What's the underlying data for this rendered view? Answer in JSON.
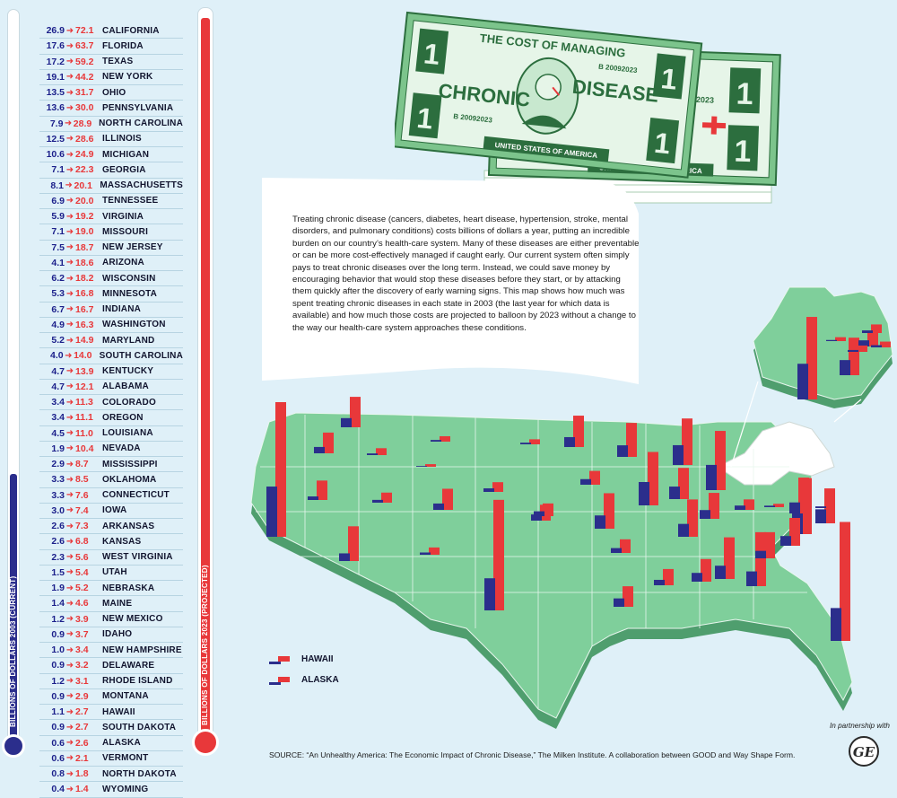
{
  "title": {
    "line1": "THE COST OF MANAGING",
    "line2a": "CHRONIC",
    "line2b": "DISEASE",
    "bill_serial": "B 20092023",
    "bill_country": "UNITED STATES OF AMERICA",
    "bill_denomination": "1"
  },
  "intro": "Treating chronic disease (cancers, diabetes, heart disease, hypertension, stroke, mental disorders, and pulmonary conditions) costs billions of dollars a year, putting an incredible burden on our country’s health-care system. Many of these diseases are either preventable or can be more cost-effectively managed if caught early. Our current system often simply pays to treat chronic diseases over the long term. Instead, we could save money by encouraging behavior that would stop these diseases before they start, or by attacking them quickly after the discovery of early warning signs. This map shows how much was spent treating chronic diseases in each state in 2003 (the last year for which data is available) and how much those costs are projected to balloon by 2023 without a change to the way our health-care system approaches these conditions.",
  "thermometers": {
    "current_label": "BILLIONS OF DOLLARS 2003 (CURRENT)",
    "projected_label": "BILLIONS OF DOLLARS 2023 (PROJECTED)",
    "current_color": "#2b2e8c",
    "projected_color": "#e8383a",
    "current_fill_fraction": 0.37,
    "projected_fill_fraction": 1.0
  },
  "legend": {
    "hawaii": "HAWAII",
    "alaska": "ALASKA"
  },
  "source": "SOURCE: “An Unhealthy America: The Economic Impact of Chronic Disease,” The Milken Institute. A collaboration between GOOD and Way Shape Form.",
  "partner": "In partnership with",
  "partner_logo": "GE",
  "colors": {
    "background": "#dff0f8",
    "map_land": "#7fcf9b",
    "map_edge": "#4f9e6e",
    "bar_2003": "#2b2e8c",
    "bar_2023": "#e8383a",
    "bill_green": "#7cc48c"
  },
  "chart_data": {
    "type": "bar",
    "units": "billions of dollars",
    "series_names": [
      "2003",
      "2023"
    ],
    "states": [
      {
        "state": "CALIFORNIA",
        "v2003": "26.9",
        "v2023": "72.1"
      },
      {
        "state": "FLORIDA",
        "v2003": "17.6",
        "v2023": "63.7"
      },
      {
        "state": "TEXAS",
        "v2003": "17.2",
        "v2023": "59.2"
      },
      {
        "state": "NEW YORK",
        "v2003": "19.1",
        "v2023": "44.2"
      },
      {
        "state": "OHIO",
        "v2003": "13.5",
        "v2023": "31.7"
      },
      {
        "state": "PENNSYLVANIA",
        "v2003": "13.6",
        "v2023": "30.0"
      },
      {
        "state": "NORTH CAROLINA",
        "v2003": "7.9",
        "v2023": "28.9"
      },
      {
        "state": "ILLINOIS",
        "v2003": "12.5",
        "v2023": "28.6"
      },
      {
        "state": "MICHIGAN",
        "v2003": "10.6",
        "v2023": "24.9"
      },
      {
        "state": "GEORGIA",
        "v2003": "7.1",
        "v2023": "22.3"
      },
      {
        "state": "MASSACHUSETTS",
        "v2003": "8.1",
        "v2023": "20.1"
      },
      {
        "state": "TENNESSEE",
        "v2003": "6.9",
        "v2023": "20.0"
      },
      {
        "state": "VIRGINIA",
        "v2003": "5.9",
        "v2023": "19.2"
      },
      {
        "state": "MISSOURI",
        "v2003": "7.1",
        "v2023": "19.0"
      },
      {
        "state": "NEW JERSEY",
        "v2003": "7.5",
        "v2023": "18.7"
      },
      {
        "state": "ARIZONA",
        "v2003": "4.1",
        "v2023": "18.6"
      },
      {
        "state": "WISCONSIN",
        "v2003": "6.2",
        "v2023": "18.2"
      },
      {
        "state": "MINNESOTA",
        "v2003": "5.3",
        "v2023": "16.8"
      },
      {
        "state": "INDIANA",
        "v2003": "6.7",
        "v2023": "16.7"
      },
      {
        "state": "WASHINGTON",
        "v2003": "4.9",
        "v2023": "16.3"
      },
      {
        "state": "MARYLAND",
        "v2003": "5.2",
        "v2023": "14.9"
      },
      {
        "state": "SOUTH CAROLINA",
        "v2003": "4.0",
        "v2023": "14.0"
      },
      {
        "state": "KENTUCKY",
        "v2003": "4.7",
        "v2023": "13.9"
      },
      {
        "state": "ALABAMA",
        "v2003": "4.7",
        "v2023": "12.1"
      },
      {
        "state": "COLORADO",
        "v2003": "3.4",
        "v2023": "11.3"
      },
      {
        "state": "OREGON",
        "v2003": "3.4",
        "v2023": "11.1"
      },
      {
        "state": "LOUISIANA",
        "v2003": "4.5",
        "v2023": "11.0"
      },
      {
        "state": "NEVADA",
        "v2003": "1.9",
        "v2023": "10.4"
      },
      {
        "state": "MISSISSIPPI",
        "v2003": "2.9",
        "v2023": "8.7"
      },
      {
        "state": "OKLAHOMA",
        "v2003": "3.3",
        "v2023": "8.5"
      },
      {
        "state": "CONNECTICUT",
        "v2003": "3.3",
        "v2023": "7.6"
      },
      {
        "state": "IOWA",
        "v2003": "3.0",
        "v2023": "7.4"
      },
      {
        "state": "ARKANSAS",
        "v2003": "2.6",
        "v2023": "7.3"
      },
      {
        "state": "KANSAS",
        "v2003": "2.6",
        "v2023": "6.8"
      },
      {
        "state": "WEST VIRGINIA",
        "v2003": "2.3",
        "v2023": "5.6"
      },
      {
        "state": "UTAH",
        "v2003": "1.5",
        "v2023": "5.4"
      },
      {
        "state": "NEBRASKA",
        "v2003": "1.9",
        "v2023": "5.2"
      },
      {
        "state": "MAINE",
        "v2003": "1.4",
        "v2023": "4.6"
      },
      {
        "state": "NEW MEXICO",
        "v2003": "1.2",
        "v2023": "3.9"
      },
      {
        "state": "IDAHO",
        "v2003": "0.9",
        "v2023": "3.7"
      },
      {
        "state": "NEW HAMPSHIRE",
        "v2003": "1.0",
        "v2023": "3.4"
      },
      {
        "state": "DELAWARE",
        "v2003": "0.9",
        "v2023": "3.2"
      },
      {
        "state": "RHODE ISLAND",
        "v2003": "1.2",
        "v2023": "3.1"
      },
      {
        "state": "MONTANA",
        "v2003": "0.9",
        "v2023": "2.9"
      },
      {
        "state": "HAWAII",
        "v2003": "1.1",
        "v2023": "2.7"
      },
      {
        "state": "SOUTH DAKOTA",
        "v2003": "0.9",
        "v2023": "2.7"
      },
      {
        "state": "ALASKA",
        "v2003": "0.6",
        "v2023": "2.6"
      },
      {
        "state": "VERMONT",
        "v2003": "0.6",
        "v2023": "2.1"
      },
      {
        "state": "NORTH DAKOTA",
        "v2003": "0.8",
        "v2023": "1.8"
      },
      {
        "state": "WYOMING",
        "v2003": "0.4",
        "v2023": "1.4"
      }
    ]
  }
}
